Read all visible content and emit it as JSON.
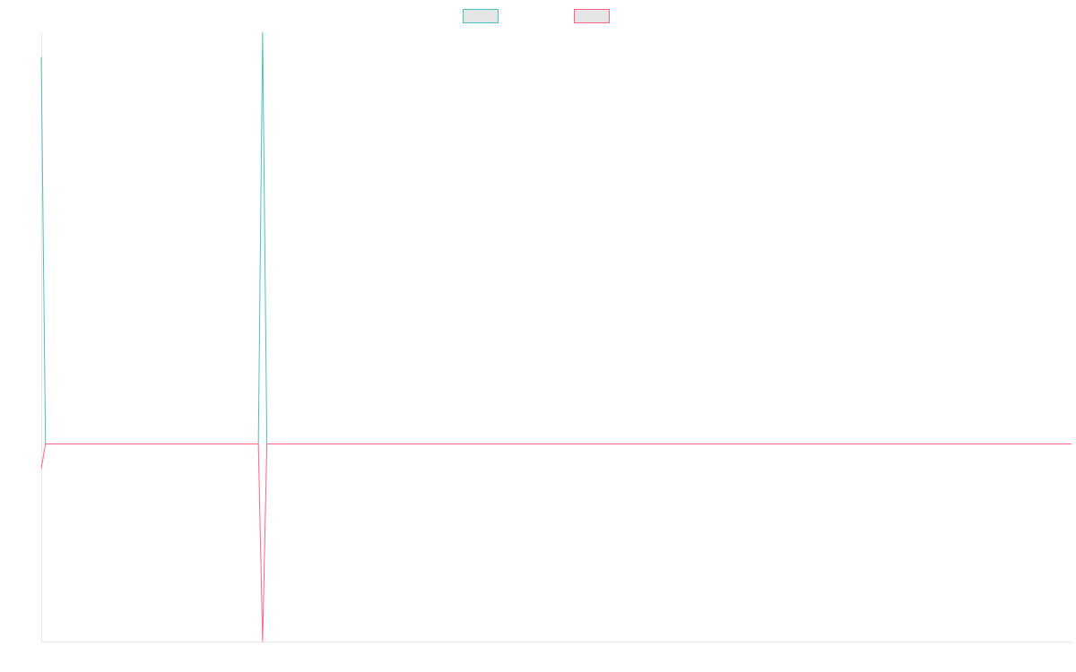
{
  "chart_data": {
    "type": "line",
    "x": [
      0,
      1,
      51,
      52,
      53,
      242
    ],
    "xlim": [
      0,
      242
    ],
    "ylim": [
      -0.48,
      1
    ],
    "grid": false,
    "legend": "top",
    "series": [
      {
        "color": "#4bc0c0",
        "values": [
          0.94,
          0,
          0,
          1,
          0,
          0
        ]
      },
      {
        "color": "#ff6384",
        "values": [
          -0.06,
          0,
          0,
          -0.48,
          0,
          0
        ]
      }
    ]
  }
}
